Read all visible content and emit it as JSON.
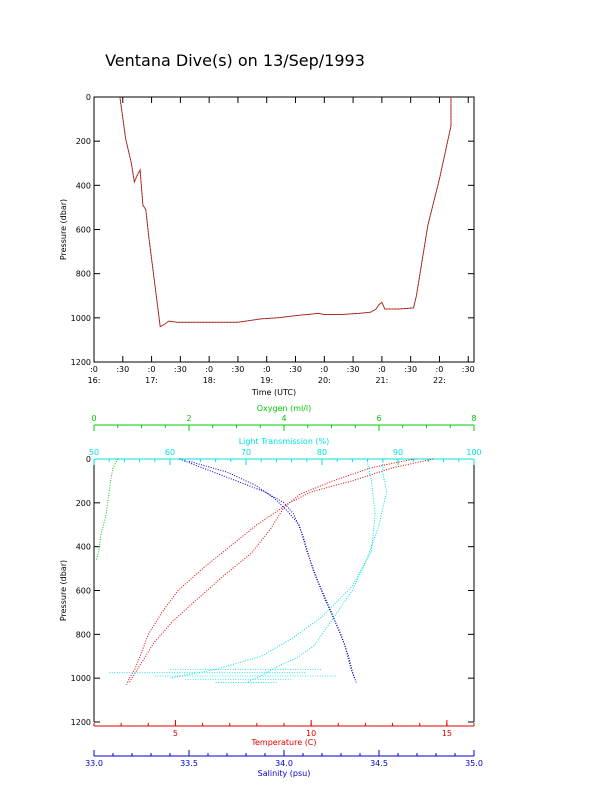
{
  "title": "Ventana Dive(s) on 13/Sep/1993",
  "colors": {
    "axis": "#000000",
    "dive_track": "#c0392b",
    "oxygen": "#00cc00",
    "light": "#00e0e0",
    "temperature": "#dd0000",
    "salinity": "#0000cc"
  },
  "chart_data": [
    {
      "type": "line",
      "title": "Ventana Dive(s) on 13/Sep/1993",
      "xlabel": "Time (UTC)",
      "ylabel": "Pressure (dbar)",
      "xlim": [
        16.0,
        22.6
      ],
      "ylim": [
        1200,
        0
      ],
      "y_ticks": [
        "0",
        "200",
        "400",
        "600",
        "800",
        "1000",
        "1200"
      ],
      "x_ticks": [
        {
          "t": 16.0,
          "l1": ":0",
          "l2": "16:"
        },
        {
          "t": 16.5,
          "l1": ":30",
          "l2": ""
        },
        {
          "t": 17.0,
          "l1": ":0",
          "l2": "17:"
        },
        {
          "t": 17.5,
          "l1": ":30",
          "l2": ""
        },
        {
          "t": 18.0,
          "l1": ":0",
          "l2": "18:"
        },
        {
          "t": 18.5,
          "l1": ":30",
          "l2": ""
        },
        {
          "t": 19.0,
          "l1": ":0",
          "l2": "19:"
        },
        {
          "t": 19.5,
          "l1": ":30",
          "l2": ""
        },
        {
          "t": 20.0,
          "l1": ":0",
          "l2": "20:"
        },
        {
          "t": 20.5,
          "l1": ":30",
          "l2": ""
        },
        {
          "t": 21.0,
          "l1": ":0",
          "l2": "21:"
        },
        {
          "t": 21.5,
          "l1": ":30",
          "l2": ""
        },
        {
          "t": 22.0,
          "l1": ":0",
          "l2": "22:"
        },
        {
          "t": 22.5,
          "l1": ":30",
          "l2": ""
        }
      ],
      "series": [
        {
          "x": [
            16.45,
            16.55,
            16.65,
            16.7,
            16.75,
            16.8,
            16.85,
            16.9,
            16.95,
            17.15,
            17.22,
            17.3,
            17.45,
            17.75,
            18.0,
            18.5,
            18.9,
            19.2,
            19.5,
            19.7,
            19.9,
            20.0,
            20.3,
            20.6,
            20.8,
            20.9,
            20.95,
            21.0,
            21.05,
            21.3,
            21.55,
            21.6,
            21.8,
            22.0,
            22.2,
            22.2
          ],
          "y": [
            0,
            190,
            300,
            385,
            355,
            330,
            490,
            510,
            630,
            1040,
            1030,
            1015,
            1020,
            1020,
            1020,
            1020,
            1005,
            1000,
            990,
            985,
            980,
            985,
            985,
            980,
            975,
            960,
            940,
            930,
            960,
            960,
            955,
            900,
            580,
            370,
            130,
            0
          ]
        }
      ]
    },
    {
      "type": "scatter",
      "ylabel": "Pressure (dbar)",
      "ylim": [
        1200,
        0
      ],
      "y_ticks": [
        "0",
        "200",
        "400",
        "600",
        "800",
        "1000",
        "1200"
      ],
      "axes": {
        "oxygen": {
          "label": "Oxygen (ml/l)",
          "lim": [
            0,
            8
          ],
          "ticks": [
            "0",
            "2",
            "4",
            "6",
            "8"
          ]
        },
        "light": {
          "label": "Light Transmission (%)",
          "lim": [
            50,
            100
          ],
          "ticks": [
            "50",
            "60",
            "70",
            "80",
            "90",
            "100"
          ]
        },
        "temperature": {
          "label": "Temperature (C)",
          "lim": [
            2,
            16
          ],
          "ticks": [
            "5",
            "10",
            "15"
          ]
        },
        "salinity": {
          "label": "Salinity (psu)",
          "lim": [
            33.0,
            35.0
          ],
          "ticks": [
            "33.0",
            "33.5",
            "34.0",
            "34.5",
            "35.0"
          ]
        }
      },
      "series": [
        {
          "axis": "oxygen",
          "p": [
            0,
            40,
            100,
            180,
            260,
            340,
            420,
            460
          ],
          "v": [
            0.5,
            0.4,
            0.35,
            0.3,
            0.25,
            0.15,
            0.1,
            0.05
          ]
        },
        {
          "axis": "light",
          "p": [
            0,
            60,
            150,
            300,
            450,
            600,
            750,
            850,
            900,
            950,
            990,
            1020
          ],
          "v": [
            88,
            88,
            88.5,
            87.5,
            86,
            84,
            81,
            79,
            77,
            74,
            72,
            70
          ]
        },
        {
          "axis": "light",
          "p": [
            20,
            100,
            250,
            420,
            580,
            720,
            820,
            900,
            960,
            1000
          ],
          "v": [
            86,
            86.5,
            87,
            86.5,
            84,
            80,
            76,
            72,
            66,
            60
          ]
        },
        {
          "axis": "temperature",
          "p": [
            0,
            40,
            100,
            150,
            200,
            300,
            400,
            500,
            600,
            700,
            800,
            900,
            960,
            1000,
            1030
          ],
          "v": [
            14.5,
            13,
            11.5,
            10,
            9.2,
            8.0,
            7.0,
            6.0,
            5.1,
            4.5,
            4.0,
            3.7,
            3.5,
            3.3,
            3.2
          ]
        },
        {
          "axis": "temperature",
          "p": [
            0,
            40,
            100,
            160,
            220,
            320,
            430,
            530,
            640,
            740,
            840,
            920,
            980,
            1020
          ],
          "v": [
            13.8,
            12.2,
            10.8,
            9.6,
            9.0,
            8.5,
            7.8,
            6.8,
            5.8,
            4.9,
            4.2,
            3.8,
            3.5,
            3.3
          ]
        },
        {
          "axis": "salinity",
          "p": [
            0,
            50,
            100,
            150,
            200,
            250,
            350,
            500,
            650,
            800,
            900,
            970,
            1020
          ],
          "v": [
            33.45,
            33.6,
            33.75,
            33.9,
            34.0,
            34.05,
            34.1,
            34.15,
            34.22,
            34.3,
            34.34,
            34.36,
            34.38
          ]
        },
        {
          "axis": "salinity",
          "p": [
            10,
            60,
            120,
            180,
            240,
            300,
            420,
            560,
            700,
            850,
            950,
            1000
          ],
          "v": [
            33.5,
            33.7,
            33.85,
            33.95,
            34.02,
            34.08,
            34.12,
            34.18,
            34.25,
            34.32,
            34.35,
            34.37
          ]
        }
      ]
    }
  ]
}
